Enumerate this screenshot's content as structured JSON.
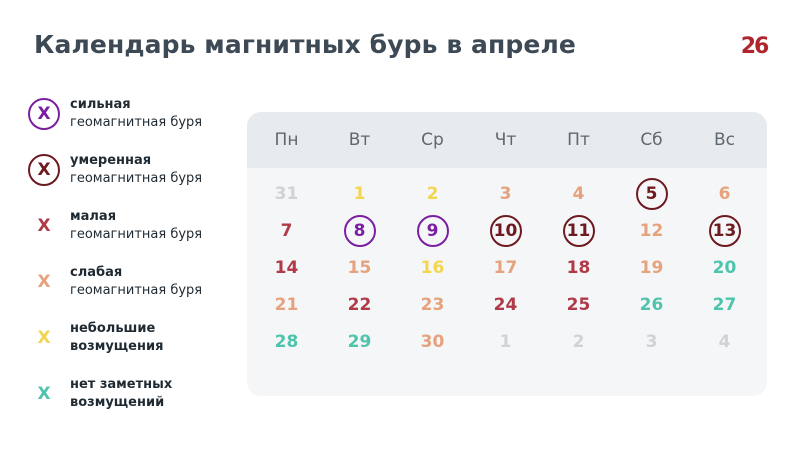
{
  "title": "Календарь магнитных бурь в апреле",
  "logo": {
    "text": "26",
    "color": "#b0262e"
  },
  "colors": {
    "strong": "#7b1fa2",
    "moderate": "#6d1a20",
    "minor": "#b03a48",
    "weak": "#e5a27d",
    "small": "#f3d54f",
    "none": "#4fc4ad",
    "other_month": "#cfd3d6"
  },
  "legend": [
    {
      "marker": "X",
      "level": "strong",
      "style": "ring",
      "line1": "сильная",
      "line2": "геомагнитная буря"
    },
    {
      "marker": "X",
      "level": "moderate",
      "style": "ring",
      "line1": "умеренная",
      "line2": "геомагнитная буря"
    },
    {
      "marker": "X",
      "level": "minor",
      "style": "plain",
      "line1": "малая",
      "line2": "геомагнитная буря"
    },
    {
      "marker": "X",
      "level": "weak",
      "style": "plain",
      "line1": "слабая",
      "line2": "геомагнитная буря"
    },
    {
      "marker": "X",
      "level": "small",
      "style": "plain",
      "line1": "небольшие",
      "line2": "возмущения"
    },
    {
      "marker": "X",
      "level": "none",
      "style": "plain",
      "line1": "нет заметных",
      "line2": "возмущений"
    }
  ],
  "weekdays": [
    "Пн",
    "Вт",
    "Ср",
    "Чт",
    "Пт",
    "Сб",
    "Вс"
  ],
  "weeks": [
    [
      {
        "d": "31",
        "level": "other_month"
      },
      {
        "d": "1",
        "level": "small"
      },
      {
        "d": "2",
        "level": "small"
      },
      {
        "d": "3",
        "level": "weak"
      },
      {
        "d": "4",
        "level": "weak"
      },
      {
        "d": "5",
        "level": "moderate",
        "ring": true
      },
      {
        "d": "6",
        "level": "weak"
      }
    ],
    [
      {
        "d": "7",
        "level": "minor"
      },
      {
        "d": "8",
        "level": "strong",
        "ring": true
      },
      {
        "d": "9",
        "level": "strong",
        "ring": true
      },
      {
        "d": "10",
        "level": "moderate",
        "ring": true
      },
      {
        "d": "11",
        "level": "moderate",
        "ring": true
      },
      {
        "d": "12",
        "level": "weak"
      },
      {
        "d": "13",
        "level": "moderate",
        "ring": true
      }
    ],
    [
      {
        "d": "14",
        "level": "minor"
      },
      {
        "d": "15",
        "level": "weak"
      },
      {
        "d": "16",
        "level": "small"
      },
      {
        "d": "17",
        "level": "weak"
      },
      {
        "d": "18",
        "level": "minor"
      },
      {
        "d": "19",
        "level": "weak"
      },
      {
        "d": "20",
        "level": "none"
      }
    ],
    [
      {
        "d": "21",
        "level": "weak"
      },
      {
        "d": "22",
        "level": "minor"
      },
      {
        "d": "23",
        "level": "weak"
      },
      {
        "d": "24",
        "level": "minor"
      },
      {
        "d": "25",
        "level": "minor"
      },
      {
        "d": "26",
        "level": "none"
      },
      {
        "d": "27",
        "level": "none"
      }
    ],
    [
      {
        "d": "28",
        "level": "none"
      },
      {
        "d": "29",
        "level": "none"
      },
      {
        "d": "30",
        "level": "weak"
      },
      {
        "d": "1",
        "level": "other_month"
      },
      {
        "d": "2",
        "level": "other_month"
      },
      {
        "d": "3",
        "level": "other_month"
      },
      {
        "d": "4",
        "level": "other_month"
      }
    ]
  ]
}
